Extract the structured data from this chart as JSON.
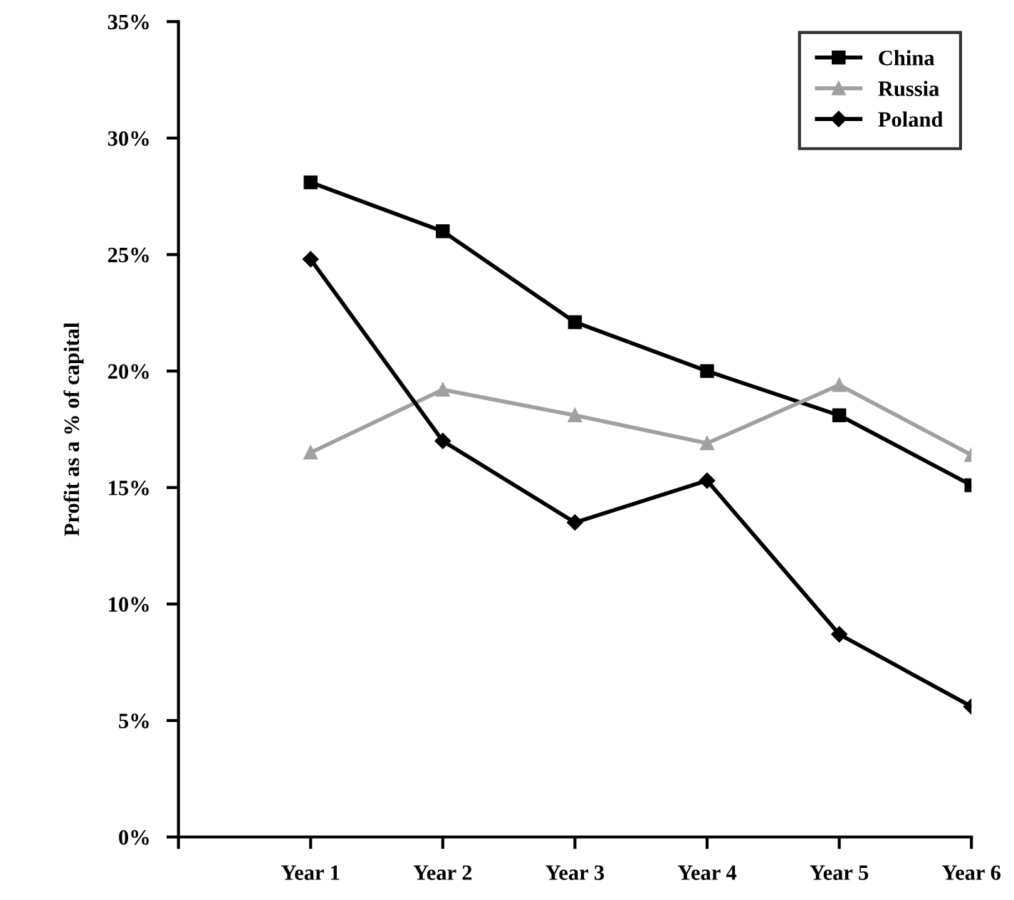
{
  "chart_data": {
    "type": "line",
    "ylabel": "Profit as a % of capital",
    "categories": [
      null,
      "Year 1",
      "Year 2",
      "Year 3",
      "Year 4",
      "Year 5",
      "Year 6"
    ],
    "series": [
      {
        "name": "China",
        "color": "#000000",
        "marker": "square",
        "values": [
          null,
          28.1,
          26.0,
          22.1,
          20.0,
          18.1,
          15.1
        ]
      },
      {
        "name": "Russia",
        "color": "#a0a0a0",
        "marker": "triangle",
        "values": [
          null,
          16.5,
          19.2,
          18.1,
          16.9,
          19.4,
          16.4
        ]
      },
      {
        "name": "Poland",
        "color": "#000000",
        "marker": "diamond",
        "values": [
          null,
          24.8,
          17.0,
          13.5,
          15.3,
          8.7,
          5.6
        ]
      }
    ],
    "ylim": [
      0,
      35
    ],
    "yticks": [
      {
        "value": 0,
        "label": "0%"
      },
      {
        "value": 5,
        "label": "5%"
      },
      {
        "value": 10,
        "label": "10%"
      },
      {
        "value": 15,
        "label": "15%"
      },
      {
        "value": 20,
        "label": "20%"
      },
      {
        "value": 25,
        "label": "25%"
      },
      {
        "value": 30,
        "label": "30%"
      },
      {
        "value": 35,
        "label": "35%"
      }
    ],
    "grid": false,
    "legend": "top right",
    "line_style": "solid"
  }
}
